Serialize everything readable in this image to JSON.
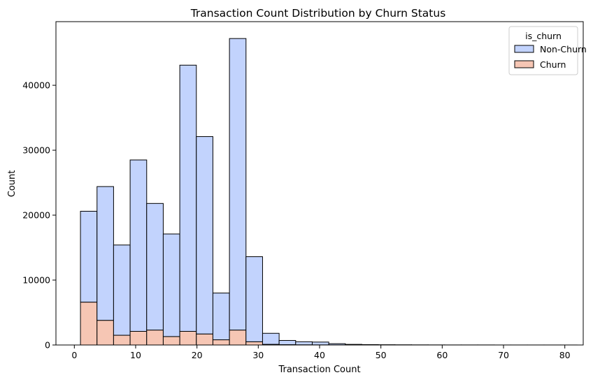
{
  "chart_data": {
    "type": "histogram-stacked",
    "title": "Transaction Count Distribution by Churn Status",
    "xlabel": "Transaction Count",
    "ylabel": "Count",
    "xlim": [
      -3.0,
      83.0
    ],
    "ylim": [
      0,
      49800
    ],
    "x_ticks": [
      0,
      10,
      20,
      30,
      40,
      50,
      60,
      70,
      80
    ],
    "y_ticks": [
      0,
      10000,
      20000,
      30000,
      40000
    ],
    "bin_edges": [
      1.0,
      3.7,
      6.4,
      9.1,
      11.8,
      14.5,
      17.2,
      19.9,
      22.6,
      25.3,
      28.0,
      30.7,
      33.4,
      36.1,
      38.8,
      41.5,
      44.2,
      46.9,
      49.6,
      52.3,
      55.0,
      57.7,
      60.4,
      63.1,
      65.8,
      68.5,
      71.2,
      73.9,
      76.6,
      79.3,
      82.0
    ],
    "legend": {
      "title": "is_churn",
      "position": "upper right"
    },
    "grid": false,
    "series": [
      {
        "name": "Churn",
        "color": "#f6c6b4",
        "values": [
          6600,
          3800,
          1500,
          2100,
          2300,
          1300,
          2100,
          1700,
          800,
          2300,
          500,
          100,
          50,
          30,
          20,
          10,
          5,
          0,
          0,
          0,
          0,
          0,
          0,
          0,
          0,
          0,
          0,
          0,
          0,
          0
        ]
      },
      {
        "name": "Non-Churn",
        "color": "#c2d3fd",
        "values": [
          14000,
          20600,
          13900,
          26400,
          19500,
          15800,
          41000,
          30400,
          7200,
          44900,
          13100,
          1700,
          650,
          470,
          430,
          190,
          90,
          60,
          40,
          30,
          20,
          15,
          10,
          10,
          10,
          5,
          5,
          5,
          5,
          5
        ]
      }
    ]
  }
}
